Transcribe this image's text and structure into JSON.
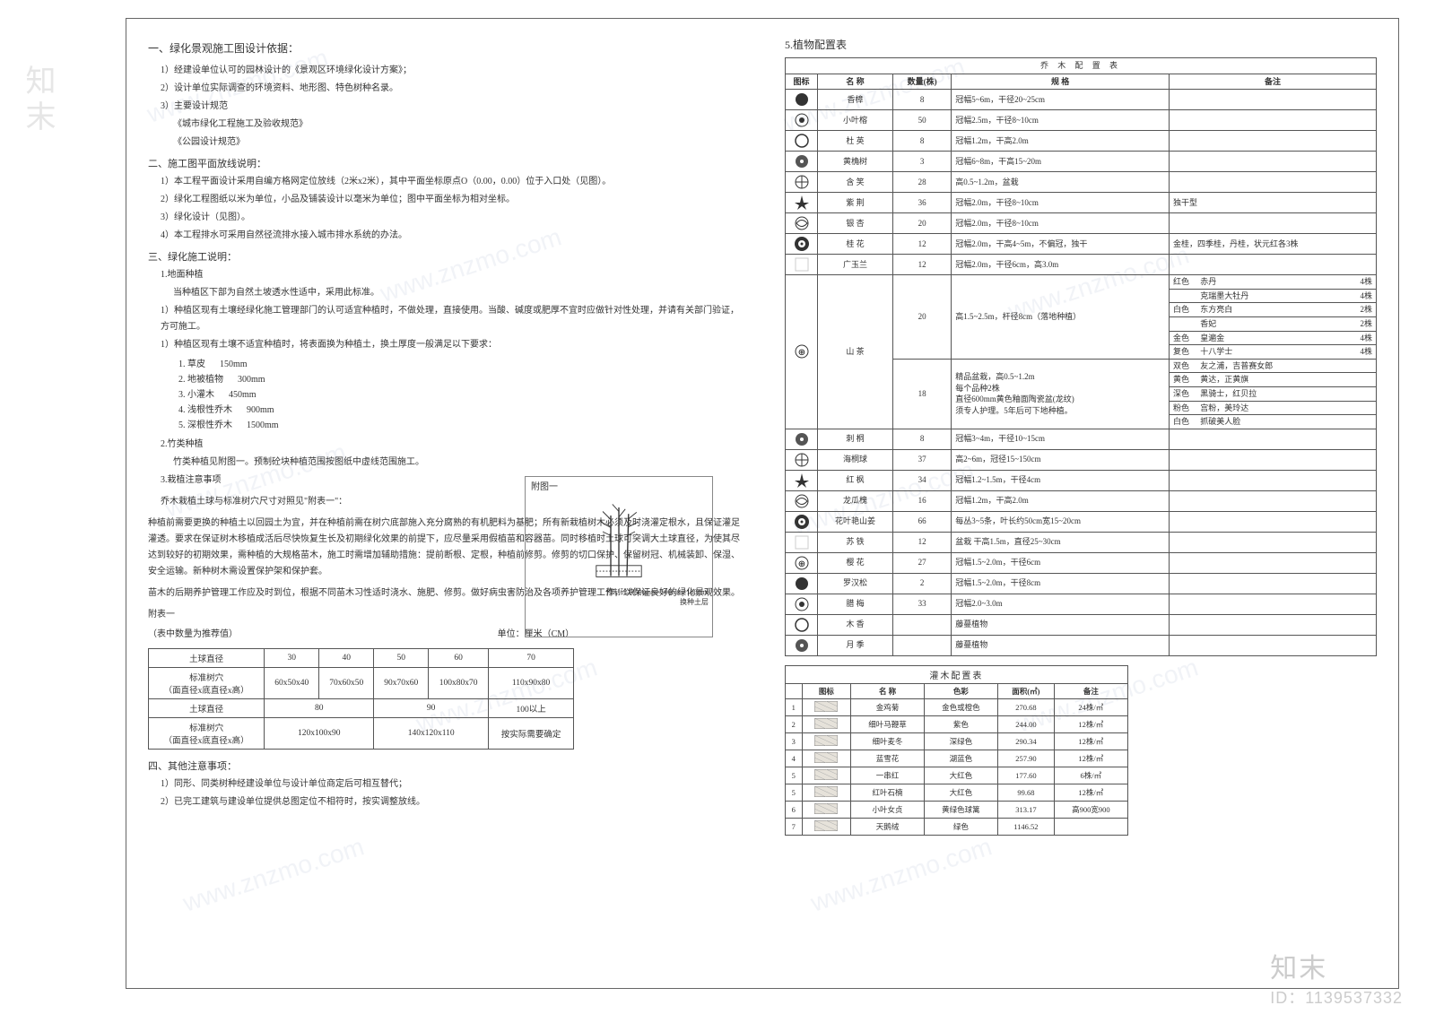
{
  "left": {
    "h1": "一、绿化景观施工图设计依据：",
    "basis": [
      "1）经建设单位认可的园林设计的《景观区环境绿化设计方案》；",
      "2）设计单位实际调查的环境资料、地形图、特色树种名录。",
      "3）主要设计规范",
      "《城市绿化工程施工及验收规范》",
      "《公园设计规范》"
    ],
    "h2": "二、施工图平面放线说明：",
    "plan": [
      "1）本工程平面设计采用自编方格网定位放线（2米x2米），其中平面坐标原点O（0.00，0.00）位于入口处（见图）。",
      "2）绿化工程图纸以米为单位，小品及铺装设计以毫米为单位；图中平面坐标为相对坐标。",
      "3）绿化设计（见图）。",
      "4）本工程排水可采用自然径流排水接入城市排水系统的办法。"
    ],
    "h3": "三、绿化施工说明：",
    "soil_h": "1.地面种植",
    "soil_intro": "当种植区下部为自然土坡透水性适中，采用此标准。",
    "soil_p1": "1）种植区现有土壤经绿化施工管理部门的认可适宜种植时，不做处理，直接使用。当酸、碱度或肥厚不宜时应做针对性处理，并请有关部门验证，方可施工。",
    "soil_p2": "1）种植区现有土壤不适宜种植时，将表面换为种植土，换土厚度一般满足以下要求：",
    "soil_rows": [
      {
        "a": "1. 草皮",
        "b": "150mm"
      },
      {
        "a": "2. 地被植物",
        "b": "300mm"
      },
      {
        "a": "3. 小灌木",
        "b": "450mm"
      },
      {
        "a": "4. 浅根性乔木",
        "b": "900mm"
      },
      {
        "a": "5. 深根性乔木",
        "b": "1500mm"
      }
    ],
    "bamboo_h": "2.竹类种植",
    "bamboo_p": "竹类种植见附图一。预制砼块种植范围按图纸中虚线范围施工。",
    "plant_h": "3.栽植注意事项",
    "plant_p1": "乔木栽植土球与标准树穴尺寸对照见\"附表一\"：",
    "plant_p2": "种植前需要更换的种植土以回园土为宜，并在种植前需在树穴底部施入充分腐熟的有机肥料为基肥；所有新栽植树木必须及时浇灌定根水，且保证灌足灌透。要求在保证树木移植成活后尽快恢复生长及初期绿化效果的前提下，应尽量采用假植苗和容器苗。同时移植时土球可突调大土球直径，为使其尽达到较好的初期效果，需种植的大规格苗木，施工时需增加辅助措施：提前断根、定根，种植前修剪。修剪的切口保护、保留树冠、机械装卸、保湿、安全运输。新种树木需设置保护架和保护套。",
    "plant_p3": "苗木的后期养护管理工作应及时到位，根据不同苗木习性适时浇水、施肥、修剪。做好病虫害防治及各项养护管理工作，以保证良好的绿化景观效果。",
    "annex_title": "附表一",
    "annex_sub": "（表中数量为推荐值）",
    "annex_unit": "单位：厘米（CM）",
    "spec_headers": [
      "土球直径",
      "30",
      "40",
      "50",
      "60",
      "70"
    ],
    "spec_r1_label": "标准树穴\n（面直径x底直径x高）",
    "spec_r1": [
      "60x50x40",
      "70x60x50",
      "90x70x60",
      "100x80x70",
      "110x90x80"
    ],
    "spec_headers2": [
      "土球直径",
      "80",
      "90",
      "100以上"
    ],
    "spec_r2": [
      "120x100x90",
      "140x120x110",
      "按实际需要确定"
    ],
    "h4": "四、其他注意事项：",
    "other": [
      "1）同形、同类树种经建设单位与设计单位商定后可相互替代；",
      "2）已完工建筑与建设单位提供总图定位不相符时，按实调整放线。"
    ],
    "annex_fig_label": "附图一",
    "annex_fig_note": "预制砼块500mm×500mm×100mm",
    "annex_fig_note2": "换种土层"
  },
  "right": {
    "sec5": "5.植物配置表",
    "tree_title": "乔 木 配 置 表",
    "tree_headers": [
      "图标",
      "名 称",
      "数量(株)",
      "规 格",
      "备注"
    ],
    "trees": [
      {
        "n": "香樟",
        "q": "8",
        "s": "冠幅5~6m，干径20~25cm",
        "r": ""
      },
      {
        "n": "小叶榕",
        "q": "50",
        "s": "冠幅2.5m，干径8~10cm",
        "r": ""
      },
      {
        "n": "杜 英",
        "q": "8",
        "s": "冠幅1.2m，干高2.0m",
        "r": ""
      },
      {
        "n": "黄桷树",
        "q": "3",
        "s": "冠幅6~8m，干高15~20m",
        "r": ""
      },
      {
        "n": "含 笑",
        "q": "28",
        "s": "高0.5~1.2m，盆栽",
        "r": ""
      },
      {
        "n": "紫 荆",
        "q": "36",
        "s": "冠幅2.0m，干径8~10cm",
        "r": "独干型"
      },
      {
        "n": "银 杏",
        "q": "20",
        "s": "冠幅2.0m，干径8~10cm",
        "r": ""
      },
      {
        "n": "桂 花",
        "q": "12",
        "s": "冠幅2.0m，干高4~5m，不偏冠，独干",
        "r": "金桂，四季桂，丹桂，状元红各3株"
      },
      {
        "n": "广玉兰",
        "q": "12",
        "s": "冠幅2.0m，干径6cm，高3.0m",
        "r": ""
      }
    ],
    "camellia": {
      "name": "山 茶",
      "group1": {
        "q": "20",
        "spec": "高1.5~2.5m，杆径8cm（落地种植）",
        "rows": [
          {
            "c": "红色",
            "v": "赤丹",
            "n": "4株"
          },
          {
            "c": "",
            "v": "克瑞墨大牡丹",
            "n": "4株"
          },
          {
            "c": "白色",
            "v": "东方亮白",
            "n": "2株"
          },
          {
            "c": "",
            "v": "香妃",
            "n": "2株"
          },
          {
            "c": "金色",
            "v": "皇遍金",
            "n": "4株"
          },
          {
            "c": "复色",
            "v": "十八学士",
            "n": "4株"
          }
        ]
      },
      "group2": {
        "q": "18",
        "spec": "精品盆栽，高0.5~1.2m\n每个品种2株\n直径600mm黄色釉面陶瓷盆(龙纹)\n须专人护理。5年后可下地种植。",
        "rows": [
          {
            "c": "双色",
            "v": "友之浦，吉普赛女郎"
          },
          {
            "c": "黄色",
            "v": "黄达，正黄旗"
          },
          {
            "c": "深色",
            "v": "黑骑士，红贝拉"
          },
          {
            "c": "粉色",
            "v": "宫粉，美玲达"
          },
          {
            "c": "白色",
            "v": "抓破美人脸"
          }
        ]
      }
    },
    "trees2": [
      {
        "n": "刺 桐",
        "q": "8",
        "s": "冠幅3~4m，干径10~15cm",
        "r": ""
      },
      {
        "n": "海桐球",
        "q": "37",
        "s": "高2~6m，冠径15~150cm",
        "r": ""
      },
      {
        "n": "红 枫",
        "q": "34",
        "s": "冠幅1.2~1.5m，干径4cm",
        "r": ""
      },
      {
        "n": "龙瓜槐",
        "q": "16",
        "s": "冠幅1.2m，干高2.0m",
        "r": ""
      },
      {
        "n": "花叶艳山姜",
        "q": "66",
        "s": "每丛3~5条，叶长约50cm宽15~20cm",
        "r": ""
      },
      {
        "n": "苏 铁",
        "q": "12",
        "s": "盆栽  干高1.5m，直径25~30cm",
        "r": ""
      },
      {
        "n": "樱 花",
        "q": "27",
        "s": "冠幅1.5~2.0m，干径6cm",
        "r": ""
      },
      {
        "n": "罗汉松",
        "q": "2",
        "s": "冠幅1.5~2.0m，干径8cm",
        "r": ""
      },
      {
        "n": "腊 梅",
        "q": "33",
        "s": "冠幅2.0~3.0m",
        "r": ""
      },
      {
        "n": "木 香",
        "q": "",
        "s": "藤蔓植物",
        "r": ""
      },
      {
        "n": "月 季",
        "q": "",
        "s": "藤蔓植物",
        "r": ""
      }
    ],
    "shrub_title": "灌木配置表",
    "shrub_headers": [
      "",
      "图标",
      "名 称",
      "色彩",
      "面积(㎡)",
      "备注"
    ],
    "shrubs": [
      {
        "i": "1",
        "n": "金鸡菊",
        "c": "金色或橙色",
        "a": "270.68",
        "r": "24株/㎡"
      },
      {
        "i": "2",
        "n": "细叶马鞭草",
        "c": "紫色",
        "a": "244.00",
        "r": "12株/㎡"
      },
      {
        "i": "3",
        "n": "细叶麦冬",
        "c": "深绿色",
        "a": "290.34",
        "r": "12株/㎡"
      },
      {
        "i": "4",
        "n": "蓝雪花",
        "c": "湖蓝色",
        "a": "257.90",
        "r": "12株/㎡"
      },
      {
        "i": "5",
        "n": "一串红",
        "c": "大红色",
        "a": "177.60",
        "r": "6株/㎡"
      },
      {
        "i": "5",
        "n": "红叶石楠",
        "c": "大红色",
        "a": "99.68",
        "r": "12株/㎡"
      },
      {
        "i": "6",
        "n": "小叶女贞",
        "c": "黄绿色球篱",
        "a": "313.17",
        "r": "高900宽900"
      },
      {
        "i": "7",
        "n": "天鹅绒",
        "c": "绿色",
        "a": "1146.52",
        "r": ""
      }
    ]
  },
  "meta": {
    "brand": "知末",
    "logo": "知末",
    "id": "ID：1139537332",
    "wm": "www.znzmo.com"
  }
}
